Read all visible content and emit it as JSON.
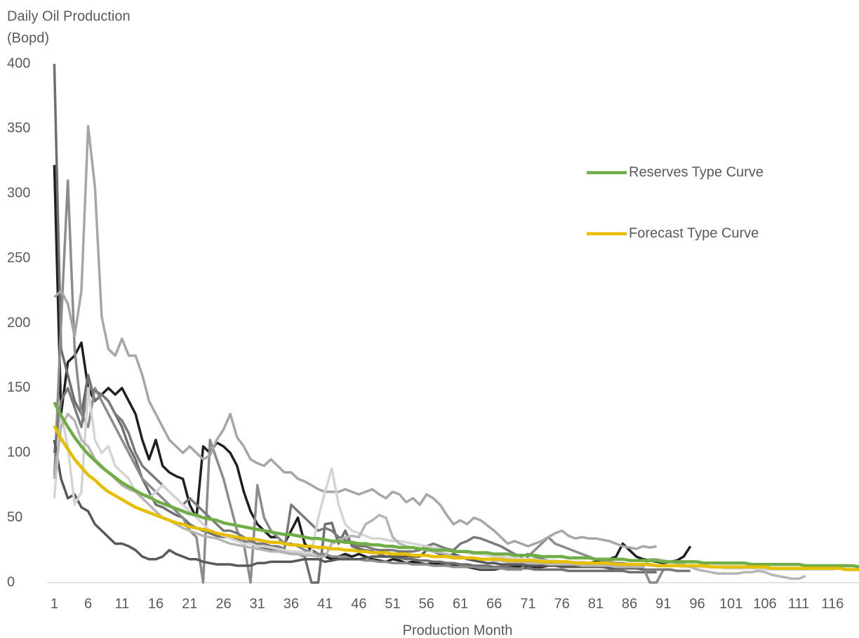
{
  "chart_data": {
    "type": "line",
    "ylabel": [
      "Daily Oil Production",
      "(Bopd)"
    ],
    "xlabel": "Production Month",
    "x": [
      1,
      2,
      3,
      4,
      5,
      6,
      7,
      8,
      9,
      10,
      11,
      12,
      13,
      14,
      15,
      16,
      17,
      18,
      19,
      20,
      21,
      22,
      23,
      24,
      25,
      26,
      27,
      28,
      29,
      30,
      31,
      32,
      33,
      34,
      35,
      36,
      37,
      38,
      39,
      40,
      41,
      42,
      43,
      44,
      45,
      46,
      47,
      48,
      49,
      50,
      51,
      52,
      53,
      54,
      55,
      56,
      57,
      58,
      59,
      60,
      61,
      62,
      63,
      64,
      65,
      66,
      67,
      68,
      69,
      70,
      71,
      72,
      73,
      74,
      75,
      76,
      77,
      78,
      79,
      80,
      81,
      82,
      83,
      84,
      85,
      86,
      87,
      88,
      89,
      90,
      91,
      92,
      93,
      94,
      95,
      96,
      97,
      98,
      99,
      100,
      101,
      102,
      103,
      104,
      105,
      106,
      107,
      108,
      109,
      110,
      111,
      112,
      113,
      114,
      115,
      116,
      117,
      118,
      119,
      120
    ],
    "xlim": [
      1,
      120
    ],
    "xticks": [
      1,
      6,
      11,
      16,
      21,
      26,
      31,
      36,
      41,
      46,
      51,
      56,
      61,
      66,
      71,
      76,
      81,
      86,
      91,
      96,
      101,
      106,
      111,
      116
    ],
    "ylim": [
      0,
      400
    ],
    "yticks": [
      0,
      50,
      100,
      150,
      200,
      250,
      300,
      350,
      400
    ],
    "grid": false,
    "legend": "right",
    "series": [
      {
        "color": "#1f1f1f",
        "values": [
          322,
          130,
          170,
          175,
          185,
          150,
          140,
          145,
          150,
          145,
          150,
          140,
          130,
          110,
          95,
          110,
          90,
          85,
          82,
          80,
          60,
          50,
          105,
          100,
          108,
          105,
          100,
          90,
          70,
          55,
          45,
          40,
          35,
          35,
          30,
          40,
          50,
          30,
          25,
          22,
          20,
          18,
          20,
          22,
          20,
          22,
          20,
          18,
          17,
          16,
          18,
          17,
          15,
          16,
          15,
          14,
          15,
          14,
          13,
          13,
          12,
          12,
          11,
          10,
          10,
          10,
          11,
          12,
          12,
          12,
          13,
          12,
          12,
          13,
          14,
          14,
          13,
          14,
          15,
          15,
          16,
          17,
          18,
          20,
          30,
          25,
          20,
          18,
          17,
          16,
          15,
          16,
          17,
          20,
          28,
          null,
          null,
          null,
          null,
          null,
          null,
          null,
          null,
          null,
          null,
          null,
          null,
          null,
          null,
          null,
          null,
          null,
          null,
          null,
          null,
          null,
          null,
          null,
          null,
          null
        ]
      },
      {
        "color": "#6e6e6e",
        "values": [
          400,
          180,
          160,
          140,
          130,
          160,
          140,
          145,
          140,
          130,
          120,
          105,
          95,
          80,
          70,
          60,
          58,
          55,
          52,
          50,
          45,
          42,
          40,
          38,
          36,
          35,
          35,
          34,
          32,
          30,
          28,
          27,
          25,
          26,
          24,
          22,
          22,
          20,
          0,
          0,
          45,
          46,
          30,
          40,
          28,
          26,
          25,
          24,
          22,
          20,
          20,
          19,
          18,
          18,
          17,
          17,
          16,
          16,
          15,
          15,
          14,
          14,
          13,
          13,
          13,
          12,
          12,
          12,
          11,
          11,
          11,
          10,
          10,
          10,
          10,
          10,
          9,
          9,
          9,
          9,
          9,
          9,
          9,
          9,
          9,
          8,
          8,
          8,
          8,
          8,
          null,
          null,
          null,
          null,
          null,
          null,
          null,
          null,
          null,
          null,
          null,
          null,
          null,
          null,
          null,
          null,
          null,
          null,
          null,
          null,
          null,
          null,
          null,
          null,
          null,
          null,
          null,
          null,
          null,
          null
        ]
      },
      {
        "color": "#8c8c8c",
        "values": [
          80,
          200,
          310,
          180,
          130,
          120,
          150,
          140,
          130,
          120,
          110,
          100,
          90,
          80,
          75,
          70,
          65,
          60,
          55,
          50,
          40,
          35,
          0,
          110,
          95,
          80,
          60,
          40,
          30,
          0,
          75,
          50,
          40,
          35,
          30,
          30,
          28,
          25,
          24,
          22,
          22,
          20,
          20,
          20,
          18,
          18,
          17,
          17,
          16,
          16,
          15,
          15,
          15,
          14,
          14,
          14,
          13,
          13,
          13,
          12,
          12,
          12,
          12,
          11,
          11,
          11,
          11,
          10,
          10,
          10,
          20,
          25,
          30,
          35,
          30,
          28,
          26,
          24,
          22,
          20,
          18,
          17,
          16,
          15,
          15,
          14,
          13,
          12,
          0,
          0,
          10,
          10,
          9,
          9,
          null,
          null,
          null,
          null,
          null,
          null,
          null,
          null,
          null,
          null,
          null,
          null,
          null,
          null,
          null,
          null,
          null,
          null,
          null,
          null,
          null,
          null,
          null,
          null,
          null,
          null
        ]
      },
      {
        "color": "#a6a6a6",
        "values": [
          220,
          225,
          215,
          190,
          225,
          352,
          305,
          205,
          180,
          175,
          188,
          175,
          175,
          160,
          140,
          130,
          120,
          110,
          105,
          100,
          105,
          100,
          95,
          98,
          110,
          118,
          130,
          112,
          105,
          95,
          92,
          90,
          95,
          90,
          85,
          85,
          80,
          78,
          75,
          72,
          70,
          70,
          70,
          72,
          70,
          68,
          70,
          72,
          68,
          65,
          70,
          68,
          62,
          65,
          60,
          68,
          65,
          60,
          52,
          45,
          48,
          45,
          50,
          48,
          44,
          40,
          35,
          30,
          32,
          30,
          28,
          30,
          32,
          35,
          38,
          40,
          36,
          34,
          35,
          34,
          34,
          33,
          32,
          30,
          28,
          27,
          26,
          28,
          27,
          28,
          null,
          null,
          null,
          null,
          null,
          null,
          null,
          null,
          null,
          null,
          null,
          null,
          null,
          null,
          null,
          null,
          null,
          null,
          null,
          null,
          null,
          null,
          null,
          null,
          null,
          null,
          null,
          null,
          null,
          null
        ]
      },
      {
        "color": "#7a7a7a",
        "values": [
          100,
          140,
          150,
          135,
          120,
          150,
          148,
          145,
          140,
          130,
          125,
          115,
          100,
          90,
          85,
          80,
          75,
          70,
          65,
          60,
          65,
          60,
          55,
          50,
          45,
          40,
          40,
          38,
          35,
          32,
          30,
          30,
          28,
          28,
          26,
          60,
          55,
          50,
          45,
          40,
          42,
          40,
          35,
          33,
          30,
          28,
          28,
          26,
          25,
          25,
          25,
          24,
          24,
          24,
          25,
          28,
          30,
          28,
          26,
          25,
          30,
          32,
          35,
          34,
          32,
          30,
          28,
          25,
          22,
          20,
          22,
          20,
          18,
          17,
          16,
          15,
          14,
          14,
          13,
          13,
          12,
          12,
          12,
          12,
          11,
          11,
          11,
          10,
          10,
          10,
          10,
          10,
          9,
          9,
          9,
          null,
          null,
          null,
          null,
          null,
          null,
          null,
          null,
          null,
          null,
          null,
          null,
          null,
          null,
          null,
          null,
          null,
          null,
          null,
          null,
          null,
          null,
          null,
          null,
          null
        ]
      },
      {
        "color": "#595959",
        "values": [
          110,
          80,
          65,
          68,
          58,
          55,
          45,
          40,
          35,
          30,
          30,
          28,
          25,
          20,
          18,
          18,
          20,
          25,
          22,
          20,
          18,
          18,
          16,
          15,
          14,
          14,
          14,
          13,
          13,
          13,
          15,
          15,
          16,
          16,
          16,
          16,
          17,
          18,
          18,
          18,
          16,
          17,
          18,
          18,
          18,
          18,
          19,
          20,
          20,
          20,
          20,
          20,
          20,
          20,
          20,
          25,
          24,
          22,
          20,
          22,
          20,
          18,
          17,
          16,
          15,
          15,
          14,
          14,
          14,
          14,
          13,
          13,
          13,
          13,
          13,
          12,
          12,
          12,
          12,
          12,
          12,
          12,
          11,
          11,
          11,
          11,
          11,
          11,
          null,
          null,
          null,
          null,
          null,
          null,
          null,
          null,
          null,
          null,
          null,
          null,
          null,
          null,
          null,
          null,
          null,
          null,
          null,
          null,
          null,
          null,
          null,
          null,
          null,
          null,
          null,
          null,
          null,
          null,
          null,
          null
        ]
      },
      {
        "color": "#d4d4d4",
        "values": [
          65,
          130,
          105,
          60,
          70,
          150,
          110,
          100,
          105,
          90,
          85,
          80,
          70,
          68,
          65,
          70,
          75,
          70,
          65,
          60,
          55,
          50,
          45,
          40,
          38,
          36,
          34,
          32,
          30,
          30,
          28,
          28,
          27,
          26,
          25,
          24,
          24,
          23,
          23,
          50,
          70,
          88,
          60,
          45,
          40,
          38,
          36,
          34,
          34,
          33,
          32,
          32,
          31,
          30,
          29,
          28,
          27,
          26,
          25,
          24,
          24,
          23,
          22,
          22,
          21,
          20,
          20,
          19,
          19,
          18,
          18,
          18,
          17,
          17,
          17,
          16,
          16,
          16,
          16,
          15,
          15,
          15,
          15,
          14,
          14,
          14,
          14,
          14,
          13,
          13,
          13,
          13,
          13,
          12,
          12,
          12,
          12,
          12,
          12,
          11,
          11,
          11,
          11,
          11,
          11,
          10,
          10,
          10,
          10,
          10,
          10,
          10,
          10,
          10,
          10,
          10,
          12,
          13,
          null,
          null
        ]
      },
      {
        "color": "#b5b5b5",
        "values": [
          80,
          120,
          130,
          125,
          110,
          105,
          95,
          90,
          85,
          80,
          75,
          72,
          70,
          65,
          60,
          55,
          50,
          48,
          45,
          42,
          40,
          38,
          36,
          35,
          34,
          32,
          30,
          29,
          28,
          27,
          26,
          25,
          24,
          24,
          23,
          22,
          22,
          21,
          21,
          20,
          20,
          30,
          32,
          35,
          36,
          35,
          45,
          48,
          52,
          50,
          35,
          30,
          28,
          27,
          26,
          25,
          24,
          23,
          22,
          20,
          20,
          19,
          19,
          18,
          18,
          17,
          17,
          16,
          16,
          16,
          15,
          15,
          15,
          14,
          14,
          14,
          14,
          14,
          13,
          13,
          13,
          13,
          13,
          12,
          12,
          12,
          12,
          12,
          18,
          18,
          17,
          16,
          15,
          14,
          12,
          10,
          9,
          8,
          7,
          7,
          7,
          7,
          8,
          8,
          9,
          8,
          6,
          5,
          4,
          3,
          3,
          5,
          null,
          null,
          null,
          null,
          null,
          null,
          null,
          null
        ]
      },
      {
        "name": "Reserves Type Curve",
        "color": "#70ad47",
        "values": [
          139,
          129,
          120,
          112,
          105,
          99,
          94,
          89,
          85,
          81,
          77,
          74,
          71,
          68,
          66,
          63,
          61,
          59,
          57,
          55,
          53,
          52,
          50,
          49,
          48,
          46,
          45,
          44,
          43,
          42,
          41,
          40,
          39,
          38,
          37,
          37,
          36,
          35,
          34,
          34,
          33,
          32,
          32,
          31,
          31,
          30,
          30,
          29,
          29,
          28,
          28,
          27,
          27,
          27,
          26,
          26,
          25,
          25,
          25,
          24,
          24,
          24,
          23,
          23,
          23,
          22,
          22,
          22,
          21,
          21,
          21,
          21,
          20,
          20,
          20,
          20,
          19,
          19,
          19,
          19,
          18,
          18,
          18,
          18,
          18,
          17,
          17,
          17,
          17,
          17,
          16,
          16,
          16,
          16,
          16,
          16,
          15,
          15,
          15,
          15,
          15,
          15,
          15,
          14,
          14,
          14,
          14,
          14,
          14,
          14,
          14,
          13,
          13,
          13,
          13,
          13,
          13,
          13,
          13,
          12
        ]
      },
      {
        "name": "Forecast Type Curve",
        "color": "#e5bf00",
        "values": [
          121,
          111,
          103,
          95,
          89,
          83,
          79,
          74,
          70,
          67,
          64,
          61,
          58,
          56,
          54,
          52,
          50,
          48,
          46,
          45,
          43,
          42,
          41,
          40,
          38,
          37,
          36,
          35,
          34,
          34,
          33,
          32,
          31,
          31,
          30,
          29,
          29,
          28,
          28,
          27,
          27,
          26,
          26,
          25,
          25,
          24,
          24,
          23,
          23,
          23,
          22,
          22,
          22,
          21,
          21,
          21,
          20,
          20,
          20,
          19,
          19,
          19,
          19,
          18,
          18,
          18,
          18,
          17,
          17,
          17,
          17,
          17,
          16,
          16,
          16,
          16,
          16,
          15,
          15,
          15,
          15,
          15,
          15,
          14,
          14,
          14,
          14,
          14,
          14,
          13,
          13,
          13,
          13,
          13,
          13,
          13,
          13,
          12,
          12,
          12,
          12,
          12,
          12,
          12,
          12,
          12,
          11,
          11,
          11,
          11,
          11,
          11,
          11,
          11,
          11,
          11,
          11,
          10,
          10,
          10
        ]
      }
    ]
  }
}
